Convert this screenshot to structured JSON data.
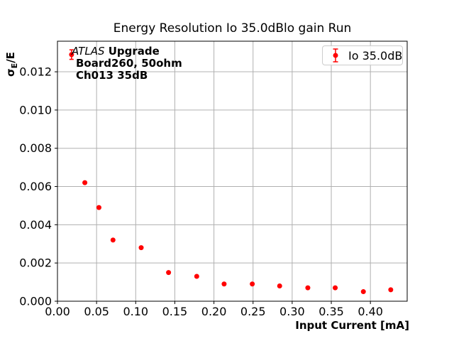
{
  "window": {
    "background": "#ffffff"
  },
  "chart_data": {
    "type": "scatter",
    "title": "Energy Resolution Io 35.0dBlo gain Run",
    "xlabel": "Input Current [mA]",
    "ylabel": "σE/E",
    "ylabel_parts": {
      "sigma": "σ",
      "subscript": "E",
      "rest": "/E"
    },
    "xlim": [
      0,
      0.447
    ],
    "ylim": [
      0,
      0.0136
    ],
    "xticks": {
      "values": [
        0,
        0.05,
        0.1,
        0.15,
        0.2,
        0.25,
        0.3,
        0.35,
        0.4
      ],
      "labels": [
        "0.00",
        "0.05",
        "0.10",
        "0.15",
        "0.20",
        "0.25",
        "0.30",
        "0.35",
        "0.40"
      ]
    },
    "yticks": {
      "values": [
        0,
        0.002,
        0.004,
        0.006,
        0.008,
        0.01,
        0.012
      ],
      "labels": [
        "0.000",
        "0.002",
        "0.004",
        "0.006",
        "0.008",
        "0.010",
        "0.012"
      ]
    },
    "grid": true,
    "grid_color": "#b0b0b0",
    "axes_color": "#000000",
    "legend": {
      "position": "upper right",
      "label": "Io 35.0dB",
      "marker": "red-errorbar-point"
    },
    "series": [
      {
        "name": "Io 35.0dB",
        "color": "#ff0000",
        "marker": "circle",
        "x": [
          0.018,
          0.035,
          0.053,
          0.071,
          0.107,
          0.142,
          0.178,
          0.213,
          0.249,
          0.284,
          0.32,
          0.355,
          0.391,
          0.426
        ],
        "y": [
          0.0129,
          0.0062,
          0.0049,
          0.0032,
          0.0028,
          0.0015,
          0.0013,
          0.0009,
          0.0009,
          0.0008,
          0.0007,
          0.0007,
          0.0005,
          0.0006
        ],
        "yerr": [
          0.00025,
          0,
          0,
          0,
          0,
          0,
          0,
          0,
          0,
          0,
          0,
          0,
          0,
          0
        ]
      }
    ]
  },
  "annotation": {
    "line1_italic": "ATLAS",
    "line1_bold": "Upgrade",
    "line2": "Board260, 50ohm",
    "line3": "Ch013 35dB"
  }
}
